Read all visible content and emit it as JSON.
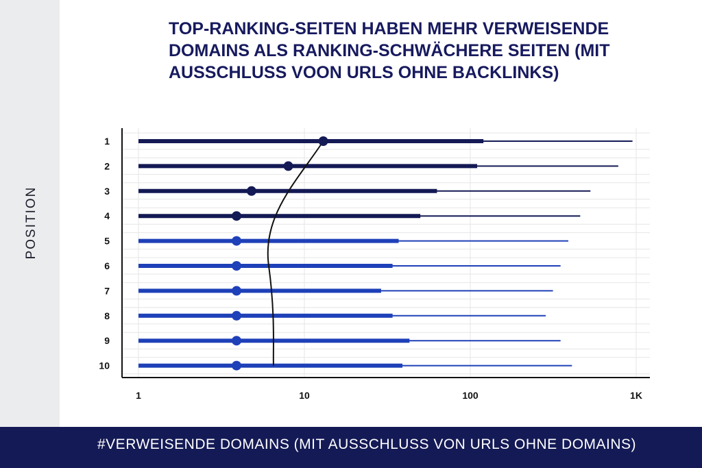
{
  "chart_data": {
    "type": "bar",
    "title": "TOP-RANKING-SEITEN HABEN MEHR VERWEISENDE DOMAINS ALS RANKING-SCHWÄCHERE SEITEN (MIT AUSSCHLUSS VOON URLS OHNE BACKLINKS)",
    "ylabel": "POSITION",
    "xlabel": "#VERWEISENDE  DOMAINS (MIT AUSSCHLUSS VON URLS OHNE  DOMAINS)",
    "x_scale": "log",
    "xlim": [
      1,
      1000
    ],
    "x_ticks": [
      "1",
      "10",
      "100",
      "1K"
    ],
    "x_tick_values": [
      1,
      10,
      100,
      1000
    ],
    "categories": [
      "1",
      "2",
      "3",
      "4",
      "5",
      "6",
      "7",
      "8",
      "9",
      "10"
    ],
    "series": [
      {
        "values": [
          13,
          8,
          4.8,
          3.9,
          3.9,
          3.9,
          3.9,
          3.9,
          3.9,
          3.9
        ]
      },
      {
        "values": [
          120,
          110,
          63,
          50,
          37,
          34,
          29,
          34,
          43,
          39
        ]
      },
      {
        "values": [
          950,
          780,
          530,
          460,
          390,
          350,
          315,
          285,
          350,
          410
        ]
      }
    ],
    "colors": {
      "top_ranks": "#141a55",
      "lower_ranks": "#1e40b8",
      "trend_line": "#111111",
      "grid": "#e6e6e6"
    },
    "grid": true,
    "legend": "none"
  }
}
